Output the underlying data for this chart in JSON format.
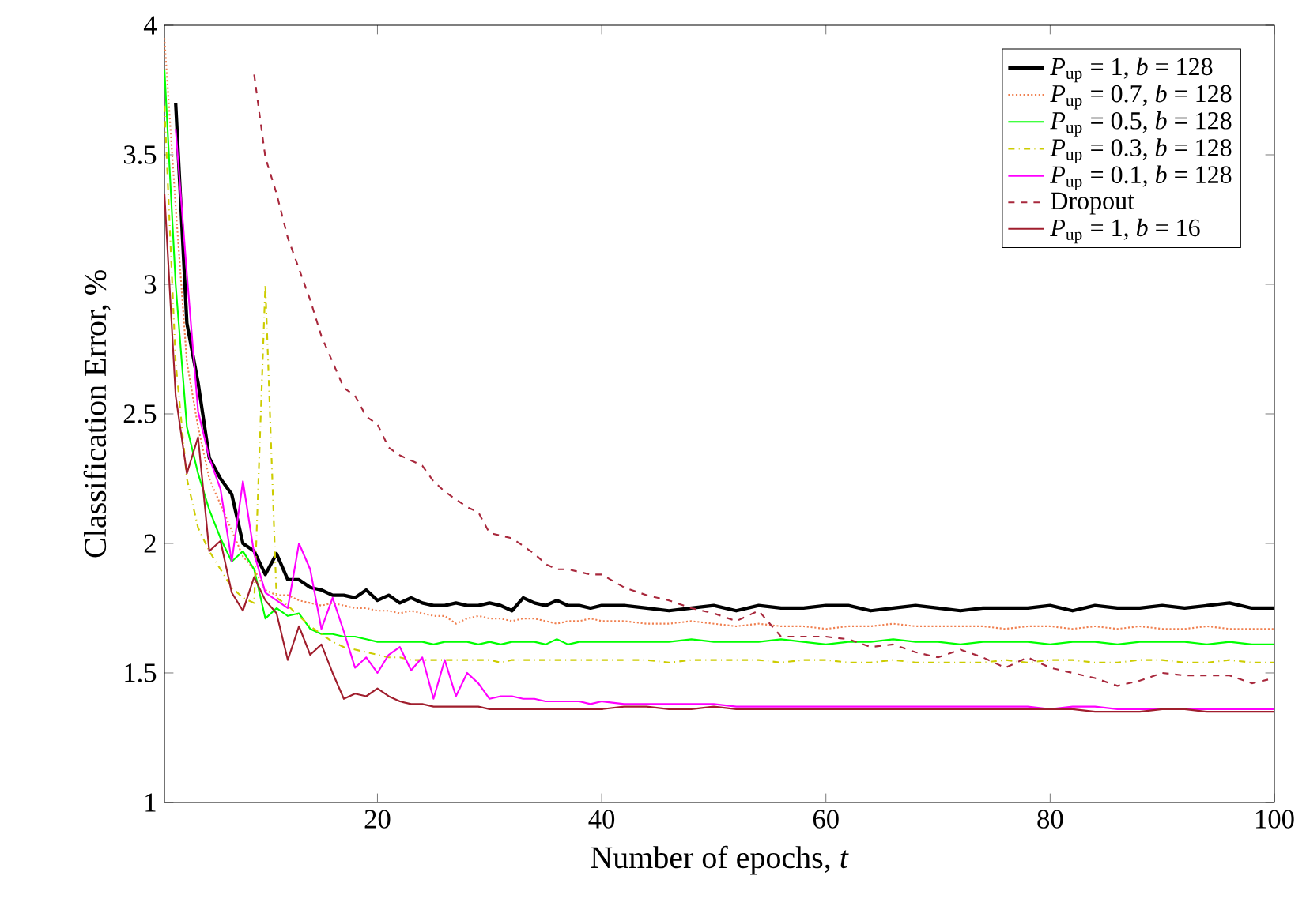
{
  "chart_data": {
    "type": "line",
    "xlabel": "Number of epochs, *t*",
    "ylabel": "Classification Error, %",
    "xlim": [
      1,
      100
    ],
    "ylim": [
      1,
      4
    ],
    "xticks": [
      20,
      40,
      60,
      80,
      100
    ],
    "yticks": [
      1,
      1.5,
      2,
      2.5,
      3,
      3.5,
      4
    ],
    "legend": "top right",
    "x": [
      1,
      2,
      3,
      4,
      5,
      6,
      7,
      8,
      9,
      10,
      11,
      12,
      13,
      14,
      15,
      16,
      17,
      18,
      19,
      20,
      21,
      22,
      23,
      24,
      25,
      26,
      27,
      28,
      29,
      30,
      31,
      32,
      33,
      34,
      35,
      36,
      37,
      38,
      39,
      40,
      42,
      44,
      46,
      48,
      50,
      52,
      54,
      56,
      58,
      60,
      62,
      64,
      66,
      68,
      70,
      72,
      74,
      76,
      78,
      80,
      82,
      84,
      86,
      88,
      90,
      92,
      94,
      96,
      98,
      100
    ],
    "series": [
      {
        "name": "*P*$_{up}$ = 1, *b* = 128",
        "color": "#000000",
        "line_style": "solid",
        "values": [
          null,
          3.7,
          2.85,
          2.62,
          2.33,
          2.25,
          2.19,
          2.0,
          1.97,
          1.88,
          1.96,
          1.86,
          1.86,
          1.83,
          1.82,
          1.8,
          1.8,
          1.79,
          1.82,
          1.78,
          1.8,
          1.77,
          1.79,
          1.77,
          1.76,
          1.76,
          1.77,
          1.76,
          1.76,
          1.77,
          1.76,
          1.74,
          1.79,
          1.77,
          1.76,
          1.78,
          1.76,
          1.76,
          1.75,
          1.76,
          1.76,
          1.75,
          1.74,
          1.75,
          1.76,
          1.74,
          1.76,
          1.75,
          1.75,
          1.76,
          1.76,
          1.74,
          1.75,
          1.76,
          1.75,
          1.74,
          1.75,
          1.75,
          1.75,
          1.76,
          1.74,
          1.76,
          1.75,
          1.75,
          1.76,
          1.75,
          1.76,
          1.77,
          1.75,
          1.75
        ]
      },
      {
        "name": "*P*$_{up}$ = 0.7, *b* = 128",
        "color": "#f08050",
        "line_style": "dotted",
        "values": [
          3.95,
          3.3,
          2.7,
          2.45,
          2.25,
          2.15,
          2.05,
          1.95,
          1.9,
          1.82,
          1.8,
          1.8,
          1.78,
          1.77,
          1.76,
          1.77,
          1.76,
          1.75,
          1.75,
          1.74,
          1.74,
          1.73,
          1.74,
          1.73,
          1.72,
          1.72,
          1.69,
          1.71,
          1.72,
          1.71,
          1.71,
          1.7,
          1.71,
          1.71,
          1.7,
          1.69,
          1.7,
          1.7,
          1.71,
          1.7,
          1.7,
          1.69,
          1.69,
          1.7,
          1.69,
          1.68,
          1.69,
          1.68,
          1.68,
          1.67,
          1.68,
          1.68,
          1.69,
          1.68,
          1.68,
          1.68,
          1.68,
          1.67,
          1.68,
          1.68,
          1.67,
          1.68,
          1.67,
          1.68,
          1.67,
          1.67,
          1.68,
          1.67,
          1.67,
          1.67
        ]
      },
      {
        "name": "*P*$_{up}$ = 0.5, *b* = 128",
        "color": "#00ff00",
        "line_style": "solid",
        "values": [
          3.83,
          3.0,
          2.45,
          2.27,
          2.13,
          2.02,
          1.93,
          1.97,
          1.9,
          1.71,
          1.75,
          1.72,
          1.73,
          1.67,
          1.65,
          1.65,
          1.64,
          1.64,
          1.63,
          1.62,
          1.62,
          1.62,
          1.62,
          1.62,
          1.61,
          1.62,
          1.62,
          1.62,
          1.61,
          1.62,
          1.61,
          1.62,
          1.62,
          1.62,
          1.61,
          1.63,
          1.61,
          1.62,
          1.62,
          1.62,
          1.62,
          1.62,
          1.62,
          1.63,
          1.62,
          1.62,
          1.62,
          1.63,
          1.62,
          1.61,
          1.62,
          1.62,
          1.63,
          1.62,
          1.62,
          1.61,
          1.62,
          1.62,
          1.62,
          1.61,
          1.62,
          1.62,
          1.61,
          1.62,
          1.62,
          1.62,
          1.61,
          1.62,
          1.61,
          1.61
        ]
      },
      {
        "name": "*P*$_{up}$ = 0.3, *b* = 128",
        "color": "#cccc00",
        "line_style": "dashdot",
        "values": [
          3.69,
          2.7,
          2.25,
          2.06,
          1.97,
          1.9,
          1.83,
          1.79,
          1.77,
          3.0,
          1.79,
          1.76,
          1.72,
          1.68,
          1.65,
          1.62,
          1.6,
          1.59,
          1.58,
          1.57,
          1.56,
          1.56,
          1.55,
          1.55,
          1.55,
          1.55,
          1.55,
          1.55,
          1.55,
          1.55,
          1.54,
          1.55,
          1.55,
          1.55,
          1.55,
          1.55,
          1.55,
          1.55,
          1.55,
          1.55,
          1.55,
          1.55,
          1.54,
          1.55,
          1.55,
          1.55,
          1.55,
          1.54,
          1.55,
          1.55,
          1.54,
          1.54,
          1.55,
          1.54,
          1.54,
          1.54,
          1.54,
          1.55,
          1.54,
          1.55,
          1.55,
          1.54,
          1.54,
          1.55,
          1.55,
          1.54,
          1.54,
          1.55,
          1.54,
          1.54
        ]
      },
      {
        "name": "*P*$_{up}$ = 0.1, *b* = 128",
        "color": "#ff00ff",
        "line_style": "solid",
        "values": [
          null,
          3.6,
          3.04,
          2.51,
          2.33,
          2.21,
          1.93,
          2.24,
          1.96,
          1.81,
          1.78,
          1.75,
          2.0,
          1.9,
          1.67,
          1.79,
          1.66,
          1.52,
          1.56,
          1.5,
          1.57,
          1.6,
          1.51,
          1.56,
          1.4,
          1.55,
          1.41,
          1.5,
          1.46,
          1.4,
          1.41,
          1.41,
          1.4,
          1.4,
          1.39,
          1.39,
          1.39,
          1.39,
          1.38,
          1.39,
          1.38,
          1.38,
          1.38,
          1.38,
          1.38,
          1.37,
          1.37,
          1.37,
          1.37,
          1.37,
          1.37,
          1.37,
          1.37,
          1.37,
          1.37,
          1.37,
          1.37,
          1.37,
          1.37,
          1.36,
          1.37,
          1.37,
          1.36,
          1.36,
          1.36,
          1.36,
          1.36,
          1.36,
          1.36,
          1.36
        ]
      },
      {
        "name": "Dropout",
        "color": "#a8283c",
        "line_style": "dashed",
        "values": [
          null,
          null,
          null,
          null,
          null,
          null,
          null,
          null,
          3.81,
          3.49,
          3.35,
          3.18,
          3.06,
          2.94,
          2.8,
          2.7,
          2.6,
          2.57,
          2.49,
          2.46,
          2.37,
          2.34,
          2.32,
          2.3,
          2.24,
          2.2,
          2.17,
          2.14,
          2.12,
          2.04,
          2.03,
          2.02,
          1.99,
          1.96,
          1.92,
          1.9,
          1.9,
          1.89,
          1.88,
          1.88,
          1.83,
          1.8,
          1.78,
          1.75,
          1.73,
          1.7,
          1.74,
          1.64,
          1.64,
          1.64,
          1.63,
          1.6,
          1.61,
          1.58,
          1.56,
          1.59,
          1.56,
          1.52,
          1.56,
          1.52,
          1.5,
          1.48,
          1.45,
          1.47,
          1.5,
          1.49,
          1.49,
          1.49,
          1.46,
          1.48
        ]
      },
      {
        "name": "*P*$_{up}$ = 1, *b* = 16",
        "color": "#a01e2d",
        "line_style": "solid",
        "values": [
          3.35,
          2.57,
          2.27,
          2.41,
          1.97,
          2.01,
          1.81,
          1.74,
          1.87,
          1.78,
          1.73,
          1.55,
          1.68,
          1.57,
          1.61,
          1.5,
          1.4,
          1.42,
          1.41,
          1.44,
          1.41,
          1.39,
          1.38,
          1.38,
          1.37,
          1.37,
          1.37,
          1.37,
          1.37,
          1.36,
          1.36,
          1.36,
          1.36,
          1.36,
          1.36,
          1.36,
          1.36,
          1.36,
          1.36,
          1.36,
          1.37,
          1.37,
          1.36,
          1.36,
          1.37,
          1.36,
          1.36,
          1.36,
          1.36,
          1.36,
          1.36,
          1.36,
          1.36,
          1.36,
          1.36,
          1.36,
          1.36,
          1.36,
          1.36,
          1.36,
          1.36,
          1.35,
          1.35,
          1.35,
          1.36,
          1.36,
          1.35,
          1.35,
          1.35,
          1.35
        ]
      }
    ]
  }
}
